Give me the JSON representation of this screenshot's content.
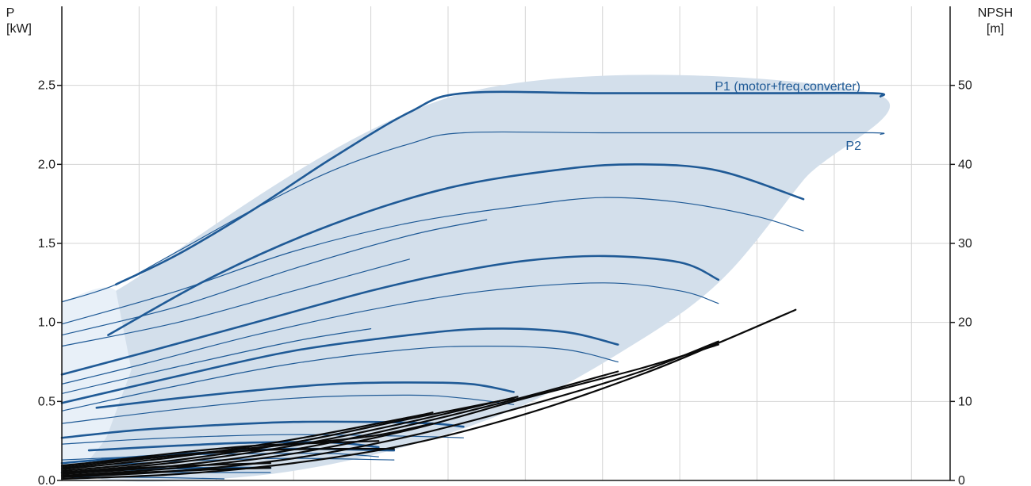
{
  "chart_data": {
    "type": "line",
    "y_left_axis": {
      "label_line1": "P",
      "label_line2": "[kW]",
      "ylim": [
        0,
        3.0
      ],
      "ticks": [
        {
          "value": 0.0,
          "label": "0.0"
        },
        {
          "value": 0.5,
          "label": "0.5"
        },
        {
          "value": 1.0,
          "label": "1.0"
        },
        {
          "value": 1.5,
          "label": "1.5"
        },
        {
          "value": 2.0,
          "label": "2.0"
        },
        {
          "value": 2.5,
          "label": "2.5"
        }
      ]
    },
    "y_right_axis": {
      "label_line1": "NPSH",
      "label_line2": "[m]",
      "ylim": [
        0,
        60
      ],
      "ticks": [
        {
          "value": 0,
          "label": "0"
        },
        {
          "value": 10,
          "label": "10"
        },
        {
          "value": 20,
          "label": "20"
        },
        {
          "value": 30,
          "label": "30"
        },
        {
          "value": 40,
          "label": "40"
        },
        {
          "value": 50,
          "label": "50"
        }
      ]
    },
    "x_axis": {
      "xlim": [
        0,
        11.5
      ],
      "gridlines": [
        1,
        2,
        3,
        4,
        5,
        6,
        7,
        8,
        9,
        10,
        11
      ]
    },
    "grid": true,
    "colors": {
      "power_curve": "#1f5a96",
      "npsh_curve": "#0a0a0a",
      "operating_area": "#d3dfeb",
      "extended_area": "#e8f0f8",
      "grid": "#d4d4d4",
      "axis": "#1a1a1a"
    },
    "annotations": [
      {
        "id": "p1",
        "text": "P1 (motor+freq.converter)",
        "series": "P1"
      },
      {
        "id": "p2",
        "text": "P2",
        "series": "P2"
      }
    ],
    "operating_area": [
      [
        0.7,
        1.2
      ],
      [
        5.2,
        2.45
      ],
      [
        10.5,
        2.45
      ],
      [
        9.6,
        1.9
      ],
      [
        8.5,
        1.25
      ],
      [
        7.2,
        0.8
      ],
      [
        5.8,
        0.44
      ],
      [
        4.1,
        0.17
      ],
      [
        2.3,
        0.02
      ],
      [
        0.4,
        0.02
      ],
      [
        0.6,
        0.3
      ],
      [
        0.9,
        0.7
      ]
    ],
    "extended_area": [
      [
        0,
        1.13
      ],
      [
        0.7,
        1.2
      ],
      [
        0.9,
        0.7
      ],
      [
        0.6,
        0.3
      ],
      [
        0.4,
        0.02
      ],
      [
        0,
        0.02
      ]
    ],
    "power_series": [
      {
        "name": "P1",
        "weight": "thick",
        "points": [
          [
            0.7,
            1.24
          ],
          [
            1.5,
            1.43
          ],
          [
            2.5,
            1.72
          ],
          [
            3.5,
            2.04
          ],
          [
            4.5,
            2.33
          ],
          [
            5.2,
            2.45
          ],
          [
            7.0,
            2.45
          ],
          [
            9.0,
            2.45
          ],
          [
            10.5,
            2.45
          ],
          [
            10.6,
            2.43
          ]
        ]
      },
      {
        "name": "P2",
        "weight": "thin",
        "points": [
          [
            0,
            1.13
          ],
          [
            0.7,
            1.24
          ],
          [
            1.5,
            1.45
          ],
          [
            2.5,
            1.72
          ],
          [
            3.5,
            1.96
          ],
          [
            4.5,
            2.13
          ],
          [
            5.2,
            2.2
          ],
          [
            7.0,
            2.2
          ],
          [
            9.0,
            2.2
          ],
          [
            10.5,
            2.2
          ],
          [
            10.6,
            2.19
          ]
        ]
      },
      {
        "name": "",
        "weight": "thick",
        "points": [
          [
            0.6,
            0.92
          ],
          [
            2.0,
            1.3
          ],
          [
            3.5,
            1.62
          ],
          [
            5.0,
            1.85
          ],
          [
            6.5,
            1.97
          ],
          [
            7.5,
            2.0
          ],
          [
            8.5,
            1.96
          ],
          [
            9.6,
            1.78
          ]
        ]
      },
      {
        "name": "",
        "weight": "thin",
        "points": [
          [
            0,
            0.99
          ],
          [
            1.5,
            1.2
          ],
          [
            3.0,
            1.45
          ],
          [
            4.5,
            1.63
          ],
          [
            6.0,
            1.74
          ],
          [
            7.0,
            1.79
          ],
          [
            8.0,
            1.76
          ],
          [
            9.0,
            1.67
          ],
          [
            9.6,
            1.58
          ]
        ]
      },
      {
        "name": "",
        "weight": "thin",
        "points": [
          [
            0,
            0.92
          ],
          [
            1.5,
            1.1
          ],
          [
            3.0,
            1.34
          ],
          [
            4.5,
            1.55
          ],
          [
            5.5,
            1.65
          ]
        ]
      },
      {
        "name": "",
        "weight": "thin",
        "points": [
          [
            0,
            0.85
          ],
          [
            1.5,
            1.0
          ],
          [
            3.0,
            1.2
          ],
          [
            4.5,
            1.4
          ]
        ]
      },
      {
        "name": "",
        "weight": "thick",
        "points": [
          [
            0,
            0.67
          ],
          [
            1.0,
            0.8
          ],
          [
            2.5,
            1.0
          ],
          [
            4.0,
            1.2
          ],
          [
            5.0,
            1.31
          ],
          [
            6.0,
            1.39
          ],
          [
            7.0,
            1.42
          ],
          [
            8.0,
            1.38
          ],
          [
            8.5,
            1.27
          ]
        ]
      },
      {
        "name": "",
        "weight": "thin",
        "points": [
          [
            0,
            0.61
          ],
          [
            1.0,
            0.73
          ],
          [
            2.5,
            0.92
          ],
          [
            4.0,
            1.08
          ],
          [
            5.5,
            1.2
          ],
          [
            7.0,
            1.25
          ],
          [
            8.0,
            1.2
          ],
          [
            8.5,
            1.12
          ]
        ]
      },
      {
        "name": "",
        "weight": "thin",
        "points": [
          [
            0,
            0.55
          ],
          [
            1.5,
            0.72
          ],
          [
            3.0,
            0.88
          ],
          [
            4.0,
            0.96
          ]
        ]
      },
      {
        "name": "",
        "weight": "thick",
        "points": [
          [
            0,
            0.49
          ],
          [
            1.5,
            0.66
          ],
          [
            3.0,
            0.82
          ],
          [
            4.5,
            0.92
          ],
          [
            5.5,
            0.96
          ],
          [
            6.5,
            0.94
          ],
          [
            7.2,
            0.86
          ]
        ]
      },
      {
        "name": "",
        "weight": "thin",
        "points": [
          [
            0,
            0.44
          ],
          [
            1.5,
            0.6
          ],
          [
            3.0,
            0.74
          ],
          [
            4.5,
            0.83
          ],
          [
            5.5,
            0.85
          ],
          [
            6.5,
            0.83
          ],
          [
            7.2,
            0.75
          ]
        ]
      },
      {
        "name": "",
        "weight": "thick",
        "points": [
          [
            0.45,
            0.46
          ],
          [
            1.5,
            0.52
          ],
          [
            2.5,
            0.57
          ],
          [
            3.5,
            0.61
          ],
          [
            4.5,
            0.62
          ],
          [
            5.3,
            0.61
          ],
          [
            5.85,
            0.56
          ]
        ]
      },
      {
        "name": "",
        "weight": "thin",
        "points": [
          [
            0,
            0.36
          ],
          [
            1.5,
            0.45
          ],
          [
            3.0,
            0.52
          ],
          [
            4.5,
            0.54
          ],
          [
            5.2,
            0.52
          ],
          [
            5.85,
            0.48
          ]
        ]
      },
      {
        "name": "",
        "weight": "thick",
        "points": [
          [
            0,
            0.27
          ],
          [
            1.0,
            0.32
          ],
          [
            2.0,
            0.35
          ],
          [
            3.0,
            0.37
          ],
          [
            4.0,
            0.37
          ],
          [
            4.8,
            0.36
          ],
          [
            5.2,
            0.34
          ]
        ]
      },
      {
        "name": "",
        "weight": "thin",
        "points": [
          [
            0,
            0.23
          ],
          [
            1.0,
            0.26
          ],
          [
            2.0,
            0.28
          ],
          [
            3.0,
            0.29
          ],
          [
            4.5,
            0.28
          ],
          [
            5.2,
            0.27
          ]
        ]
      },
      {
        "name": "",
        "weight": "thick",
        "points": [
          [
            0.35,
            0.19
          ],
          [
            1.5,
            0.22
          ],
          [
            2.5,
            0.24
          ],
          [
            3.5,
            0.24
          ],
          [
            4.1,
            0.21
          ]
        ]
      },
      {
        "name": "",
        "weight": "thin",
        "points": [
          [
            0,
            0.13
          ],
          [
            1.5,
            0.16
          ],
          [
            2.5,
            0.17
          ],
          [
            3.5,
            0.17
          ],
          [
            4.1,
            0.15
          ]
        ]
      },
      {
        "name": "",
        "weight": "thick",
        "points": [
          [
            0,
            0.11
          ],
          [
            1.0,
            0.15
          ],
          [
            2.0,
            0.18
          ],
          [
            3.0,
            0.2
          ],
          [
            4.3,
            0.19
          ]
        ]
      },
      {
        "name": "",
        "weight": "thin",
        "points": [
          [
            0,
            0.08
          ],
          [
            1.0,
            0.11
          ],
          [
            2.0,
            0.13
          ],
          [
            3.0,
            0.14
          ],
          [
            4.3,
            0.13
          ]
        ]
      },
      {
        "name": "",
        "weight": "thick",
        "points": [
          [
            0,
            0.05
          ],
          [
            1.0,
            0.07
          ],
          [
            2.0,
            0.08
          ],
          [
            2.7,
            0.08
          ]
        ]
      },
      {
        "name": "",
        "weight": "thin",
        "points": [
          [
            0,
            0.03
          ],
          [
            1.0,
            0.05
          ],
          [
            2.0,
            0.05
          ],
          [
            2.7,
            0.05
          ]
        ]
      },
      {
        "name": "",
        "weight": "thin",
        "points": [
          [
            0,
            0.02
          ],
          [
            1.0,
            0.02
          ],
          [
            2.1,
            0.01
          ]
        ]
      }
    ],
    "npsh_series": [
      {
        "name": "",
        "points": [
          [
            0,
            0.2
          ],
          [
            1.5,
            0.8
          ],
          [
            3.0,
            2.2
          ],
          [
            4.5,
            4.6
          ],
          [
            6.0,
            8.4
          ],
          [
            7.5,
            13.4
          ],
          [
            8.5,
            17.4
          ],
          [
            9.5,
            21.6
          ]
        ]
      },
      {
        "name": "",
        "points": [
          [
            0,
            0.4
          ],
          [
            1.5,
            1.2
          ],
          [
            3.0,
            2.8
          ],
          [
            4.5,
            5.6
          ],
          [
            6.0,
            9.4
          ],
          [
            7.5,
            13.8
          ],
          [
            8.5,
            17.6
          ]
        ]
      },
      {
        "name": "",
        "points": [
          [
            0,
            0.6
          ],
          [
            1.5,
            1.6
          ],
          [
            3.0,
            3.4
          ],
          [
            4.5,
            6.4
          ],
          [
            6.0,
            10.4
          ],
          [
            7.5,
            14.2
          ],
          [
            8.5,
            17.2
          ]
        ]
      },
      {
        "name": "",
        "points": [
          [
            0,
            0.8
          ],
          [
            1.5,
            1.9
          ],
          [
            3.0,
            3.9
          ],
          [
            4.5,
            7.0
          ],
          [
            6.0,
            10.6
          ],
          [
            7.2,
            13.8
          ]
        ]
      },
      {
        "name": "",
        "points": [
          [
            0,
            1.0
          ],
          [
            1.5,
            2.3
          ],
          [
            3.0,
            4.4
          ],
          [
            4.5,
            7.4
          ],
          [
            5.9,
            10.6
          ]
        ]
      },
      {
        "name": "",
        "points": [
          [
            0,
            1.2
          ],
          [
            1.5,
            2.6
          ],
          [
            3.0,
            4.8
          ],
          [
            4.5,
            7.8
          ],
          [
            5.85,
            10.4
          ]
        ]
      },
      {
        "name": "",
        "points": [
          [
            0,
            1.4
          ],
          [
            1.5,
            3.0
          ],
          [
            3.0,
            5.2
          ],
          [
            4.5,
            8.0
          ],
          [
            4.8,
            8.6
          ]
        ]
      },
      {
        "name": "",
        "points": [
          [
            0,
            1.6
          ],
          [
            1.5,
            3.2
          ],
          [
            3.0,
            4.6
          ],
          [
            4.0,
            5.6
          ],
          [
            4.8,
            7.2
          ]
        ]
      },
      {
        "name": "",
        "points": [
          [
            0,
            1.8
          ],
          [
            1.5,
            3.5
          ],
          [
            2.5,
            4.4
          ],
          [
            3.5,
            4.8
          ],
          [
            4.1,
            5.0
          ]
        ]
      },
      {
        "name": "",
        "points": [
          [
            0,
            1.9
          ],
          [
            1.5,
            3.2
          ],
          [
            2.5,
            3.8
          ],
          [
            3.5,
            4.0
          ],
          [
            4.3,
            4.0
          ]
        ]
      },
      {
        "name": "",
        "points": [
          [
            0,
            1.0
          ],
          [
            1.0,
            1.6
          ],
          [
            2.0,
            2.0
          ],
          [
            2.7,
            2.2
          ]
        ]
      },
      {
        "name": "",
        "points": [
          [
            0,
            0.6
          ],
          [
            1.0,
            1.0
          ],
          [
            2.0,
            1.4
          ],
          [
            2.7,
            1.6
          ]
        ]
      }
    ]
  }
}
